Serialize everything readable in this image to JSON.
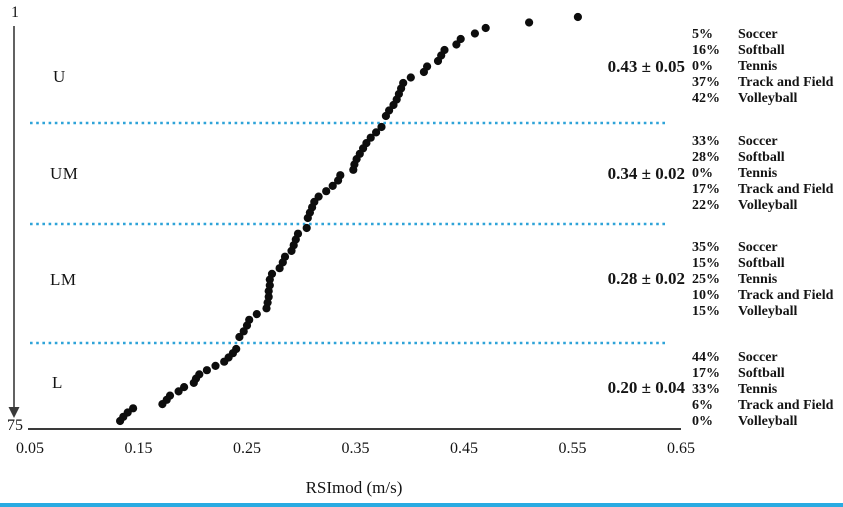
{
  "figure": {
    "top_rank_label": "1",
    "bottom_rank_label": "75",
    "colors": {
      "dot": "#0d0d0d",
      "divider_dotted": "#2ea3d8",
      "axis": "#3a3a3a",
      "bottom_rule": "#29abe2",
      "text": "#141414"
    }
  },
  "chart_data": {
    "type": "scatter",
    "title": "",
    "xlabel": "RSImod (m/s)",
    "xlim": [
      0.05,
      0.65
    ],
    "x_ticks": [
      0.05,
      0.15,
      0.25,
      0.35,
      0.45,
      0.55,
      0.65
    ],
    "y_axis": {
      "meaning": "athlete rank, 1 at top to 75 at bottom",
      "top": 1,
      "bottom": 75
    },
    "n_points": 75,
    "groups": [
      {
        "label": "U",
        "mean_sd": "0.43 ± 0.05",
        "rank_range": [
          1,
          19
        ],
        "breakdown": [
          {
            "pct": "5%",
            "sport": "Soccer"
          },
          {
            "pct": "16%",
            "sport": "Softball"
          },
          {
            "pct": "0%",
            "sport": "Tennis"
          },
          {
            "pct": "37%",
            "sport": "Track and Field"
          },
          {
            "pct": "42%",
            "sport": "Volleyball"
          }
        ]
      },
      {
        "label": "UM",
        "mean_sd": "0.34 ± 0.02",
        "rank_range": [
          20,
          37
        ],
        "breakdown": [
          {
            "pct": "33%",
            "sport": "Soccer"
          },
          {
            "pct": "28%",
            "sport": "Softball"
          },
          {
            "pct": "0%",
            "sport": "Tennis"
          },
          {
            "pct": "17%",
            "sport": "Track and Field"
          },
          {
            "pct": "22%",
            "sport": "Volleyball"
          }
        ]
      },
      {
        "label": "LM",
        "mean_sd": "0.28 ± 0.02",
        "rank_range": [
          38,
          57
        ],
        "breakdown": [
          {
            "pct": "35%",
            "sport": "Soccer"
          },
          {
            "pct": "15%",
            "sport": "Softball"
          },
          {
            "pct": "25%",
            "sport": "Tennis"
          },
          {
            "pct": "10%",
            "sport": "Track and Field"
          },
          {
            "pct": "15%",
            "sport": "Volleyball"
          }
        ]
      },
      {
        "label": "L",
        "mean_sd": "0.20 ± 0.04",
        "rank_range": [
          58,
          75
        ],
        "breakdown": [
          {
            "pct": "44%",
            "sport": "Soccer"
          },
          {
            "pct": "17%",
            "sport": "Softball"
          },
          {
            "pct": "33%",
            "sport": "Tennis"
          },
          {
            "pct": "6%",
            "sport": "Track and Field"
          },
          {
            "pct": "0%",
            "sport": "Volleyball"
          }
        ]
      }
    ],
    "values": [
      0.555,
      0.51,
      0.47,
      0.46,
      0.447,
      0.443,
      0.432,
      0.429,
      0.426,
      0.416,
      0.413,
      0.401,
      0.394,
      0.392,
      0.39,
      0.388,
      0.385,
      0.381,
      0.378,
      0.374,
      0.369,
      0.364,
      0.36,
      0.357,
      0.354,
      0.351,
      0.349,
      0.348,
      0.336,
      0.334,
      0.329,
      0.323,
      0.316,
      0.312,
      0.31,
      0.308,
      0.306,
      0.305,
      0.297,
      0.295,
      0.293,
      0.291,
      0.285,
      0.283,
      0.28,
      0.273,
      0.271,
      0.271,
      0.27,
      0.27,
      0.269,
      0.268,
      0.259,
      0.252,
      0.25,
      0.247,
      0.243,
      0.24,
      0.237,
      0.233,
      0.229,
      0.221,
      0.213,
      0.206,
      0.203,
      0.201,
      0.192,
      0.187,
      0.179,
      0.176,
      0.172,
      0.145,
      0.14,
      0.136,
      0.133
    ]
  }
}
